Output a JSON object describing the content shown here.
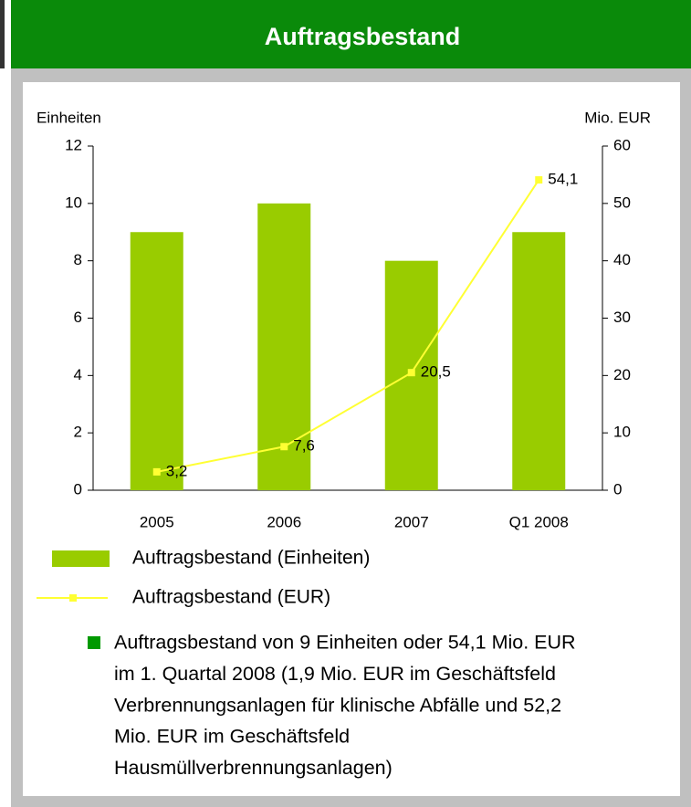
{
  "chart_data": {
    "type": "bar",
    "title": "Auftragsbestand",
    "ylabel": "Einheiten",
    "y2label": "Mio. EUR",
    "categories": [
      "2005",
      "2006",
      "2007",
      "Q1 2008"
    ],
    "series": [
      {
        "name": "Auftragsbestand (Einheiten)",
        "type": "bar",
        "color": "#99cc00",
        "axis": "y",
        "values": [
          9,
          10,
          8,
          9
        ]
      },
      {
        "name": "Auftragsbestand (EUR)",
        "type": "line",
        "color": "#ffff33",
        "axis": "y2",
        "values": [
          3.2,
          7.6,
          20.5,
          54.1
        ],
        "value_labels": [
          "3,2",
          "7,6",
          "20,5",
          "54,1"
        ]
      }
    ],
    "ylim": [
      0,
      12
    ],
    "yticks": [
      0,
      2,
      4,
      6,
      8,
      10,
      12
    ],
    "y2lim": [
      0,
      60
    ],
    "y2ticks": [
      0,
      10,
      20,
      30,
      40,
      50,
      60
    ],
    "notes": [
      "Auftragsbestand von 9 Einheiten oder 54,1 Mio. EUR",
      "im 1. Quartal 2008 (1,9 Mio. EUR im Geschäftsfeld",
      "Verbrennungsanlagen für klinische Abfälle und 52,2",
      "Mio. EUR im Geschäftsfeld",
      "Hausmüllverbrennungsanlagen)"
    ]
  }
}
